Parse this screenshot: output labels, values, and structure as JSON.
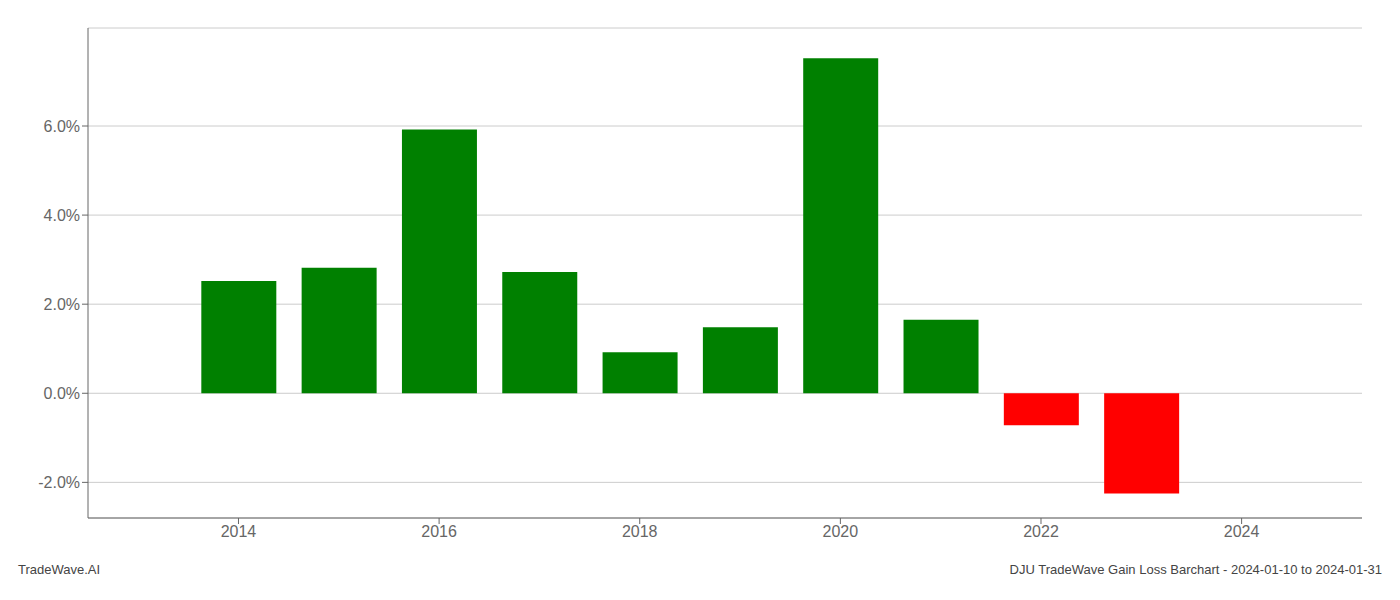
{
  "chart_data": {
    "type": "bar",
    "title": "DJU TradeWave Gain Loss Barchart - 2024-01-10 to 2024-01-31",
    "annotations": [
      "TradeWave.AI"
    ],
    "x": [
      2014,
      2015,
      2016,
      2017,
      2018,
      2019,
      2020,
      2021,
      2022,
      2023
    ],
    "values": [
      0.0252,
      0.0282,
      0.0592,
      0.0272,
      0.0092,
      0.0148,
      0.0752,
      0.0165,
      -0.0072,
      -0.0225
    ],
    "colors": [
      "#008000",
      "#008000",
      "#008000",
      "#008000",
      "#008000",
      "#008000",
      "#008000",
      "#008000",
      "#ff0000",
      "#ff0000"
    ],
    "xlim": [
      2012.5,
      2025.2
    ],
    "xticks": [
      2014,
      2016,
      2018,
      2020,
      2022,
      2024
    ],
    "ylim": [
      -0.028,
      0.082
    ],
    "yticks": [
      {
        "value": -0.02,
        "label": "-2.0%"
      },
      {
        "value": 0.0,
        "label": "0.0%"
      },
      {
        "value": 0.02,
        "label": "2.0%"
      },
      {
        "value": 0.04,
        "label": "4.0%"
      },
      {
        "value": 0.06,
        "label": "6.0%"
      }
    ],
    "grid": true
  }
}
